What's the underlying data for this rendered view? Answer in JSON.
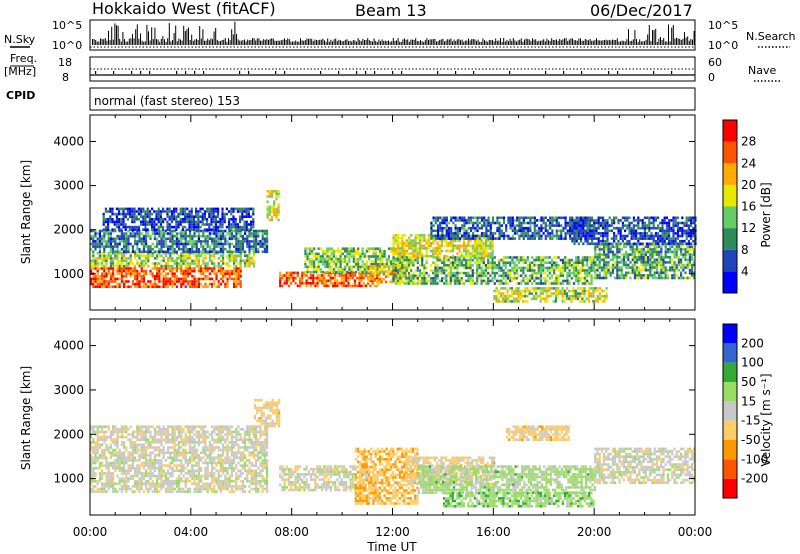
{
  "header": {
    "station": "Hokkaido West (fitACF)",
    "beam": "Beam 13",
    "date": "06/Dec/2017"
  },
  "top_panels": {
    "nsky_label": "N.Sky",
    "nsky_ticks": [
      "10^5",
      "10^0"
    ],
    "nsearch_label": "N.Search",
    "nsearch_ticks": [
      "10^5",
      "10^0"
    ],
    "freq_label": "Freq.",
    "freq_unit": "[MHz]",
    "freq_ticks": [
      "18",
      "8"
    ],
    "nave_label": "Nave",
    "nave_ticks": [
      "60",
      "0"
    ],
    "cpid_label": "CPID",
    "cpid_text": "normal (fast stereo) 153"
  },
  "chart_data": [
    {
      "type": "heatmap",
      "title": "",
      "ylabel": "Slant Range [km]",
      "xlabel": "",
      "ylim": [
        180,
        4600
      ],
      "xlim": [
        0,
        24
      ],
      "yticks": [
        1000,
        2000,
        3000,
        4000
      ],
      "colorbar": {
        "label": "Power [dB]",
        "ticks": [
          "28",
          "24",
          "20",
          "16",
          "12",
          "8",
          "4"
        ],
        "range": [
          0,
          32
        ],
        "colors": [
          "#0000ff",
          "#2244bb",
          "#2e8b57",
          "#66cc66",
          "#e8e800",
          "#ffaa00",
          "#ff5500",
          "#ff0000"
        ]
      },
      "echo_regions": [
        {
          "t0": 0.0,
          "t1": 6.0,
          "r0": 700,
          "r1": 1150,
          "level": 26
        },
        {
          "t0": 0.0,
          "t1": 6.5,
          "r0": 1150,
          "r1": 1500,
          "level": 16
        },
        {
          "t0": 0.0,
          "t1": 7.0,
          "r0": 1500,
          "r1": 2000,
          "level": 9
        },
        {
          "t0": 0.5,
          "t1": 6.5,
          "r0": 2000,
          "r1": 2500,
          "level": 6
        },
        {
          "t0": 7.0,
          "t1": 7.5,
          "r0": 2200,
          "r1": 2900,
          "level": 18
        },
        {
          "t0": 7.5,
          "t1": 11.5,
          "r0": 750,
          "r1": 1050,
          "level": 26
        },
        {
          "t0": 8.5,
          "t1": 12.5,
          "r0": 1050,
          "r1": 1600,
          "level": 14
        },
        {
          "t0": 11.0,
          "t1": 12.5,
          "r0": 800,
          "r1": 1200,
          "level": 22
        },
        {
          "t0": 12.0,
          "t1": 20.0,
          "r0": 800,
          "r1": 1400,
          "level": 13
        },
        {
          "t0": 12.0,
          "t1": 16.0,
          "r0": 1400,
          "r1": 1900,
          "level": 18
        },
        {
          "t0": 16.0,
          "t1": 20.5,
          "r0": 350,
          "r1": 700,
          "level": 17
        },
        {
          "t0": 13.5,
          "t1": 20.0,
          "r0": 1800,
          "r1": 2300,
          "level": 7
        },
        {
          "t0": 20.0,
          "t1": 24.0,
          "r0": 900,
          "r1": 1700,
          "level": 12
        },
        {
          "t0": 19.0,
          "t1": 24.0,
          "r0": 1700,
          "r1": 2300,
          "level": 6
        }
      ]
    },
    {
      "type": "heatmap",
      "title": "",
      "ylabel": "Slant Range [km]",
      "xlabel": "Time UT",
      "ylim": [
        180,
        4600
      ],
      "xlim": [
        0,
        24
      ],
      "yticks": [
        1000,
        2000,
        3000,
        4000
      ],
      "xticks": [
        "00:00",
        "04:00",
        "08:00",
        "12:00",
        "16:00",
        "20:00",
        "00:00"
      ],
      "colorbar": {
        "label": "Velocity [m s⁻¹]",
        "ticks": [
          "200",
          "100",
          "50",
          "15",
          "-15",
          "-50",
          "-100",
          "-200"
        ],
        "range": [
          -250,
          250
        ],
        "colors": [
          "#ff0000",
          "#ff5500",
          "#ff9900",
          "#ffcc66",
          "#c8c8c8",
          "#99dd66",
          "#33aa33",
          "#3366cc",
          "#0000ff"
        ]
      },
      "echo_regions": [
        {
          "t0": 0.0,
          "t1": 7.0,
          "r0": 700,
          "r1": 1500,
          "level": 0
        },
        {
          "t0": 0.0,
          "t1": 7.0,
          "r0": 1500,
          "r1": 2200,
          "level": -5
        },
        {
          "t0": 6.5,
          "t1": 7.5,
          "r0": 2200,
          "r1": 2800,
          "level": -40
        },
        {
          "t0": 7.5,
          "t1": 11.0,
          "r0": 750,
          "r1": 1300,
          "level": 0
        },
        {
          "t0": 10.5,
          "t1": 13.0,
          "r0": 450,
          "r1": 1700,
          "level": -70
        },
        {
          "t0": 12.5,
          "t1": 16.0,
          "r0": 900,
          "r1": 1500,
          "level": -40
        },
        {
          "t0": 13.0,
          "t1": 20.0,
          "r0": 700,
          "r1": 1300,
          "level": 40
        },
        {
          "t0": 14.0,
          "t1": 20.0,
          "r0": 400,
          "r1": 700,
          "level": 60
        },
        {
          "t0": 16.5,
          "t1": 19.0,
          "r0": 1900,
          "r1": 2200,
          "level": -40
        },
        {
          "t0": 20.0,
          "t1": 24.0,
          "r0": 900,
          "r1": 1700,
          "level": 0
        }
      ]
    }
  ]
}
